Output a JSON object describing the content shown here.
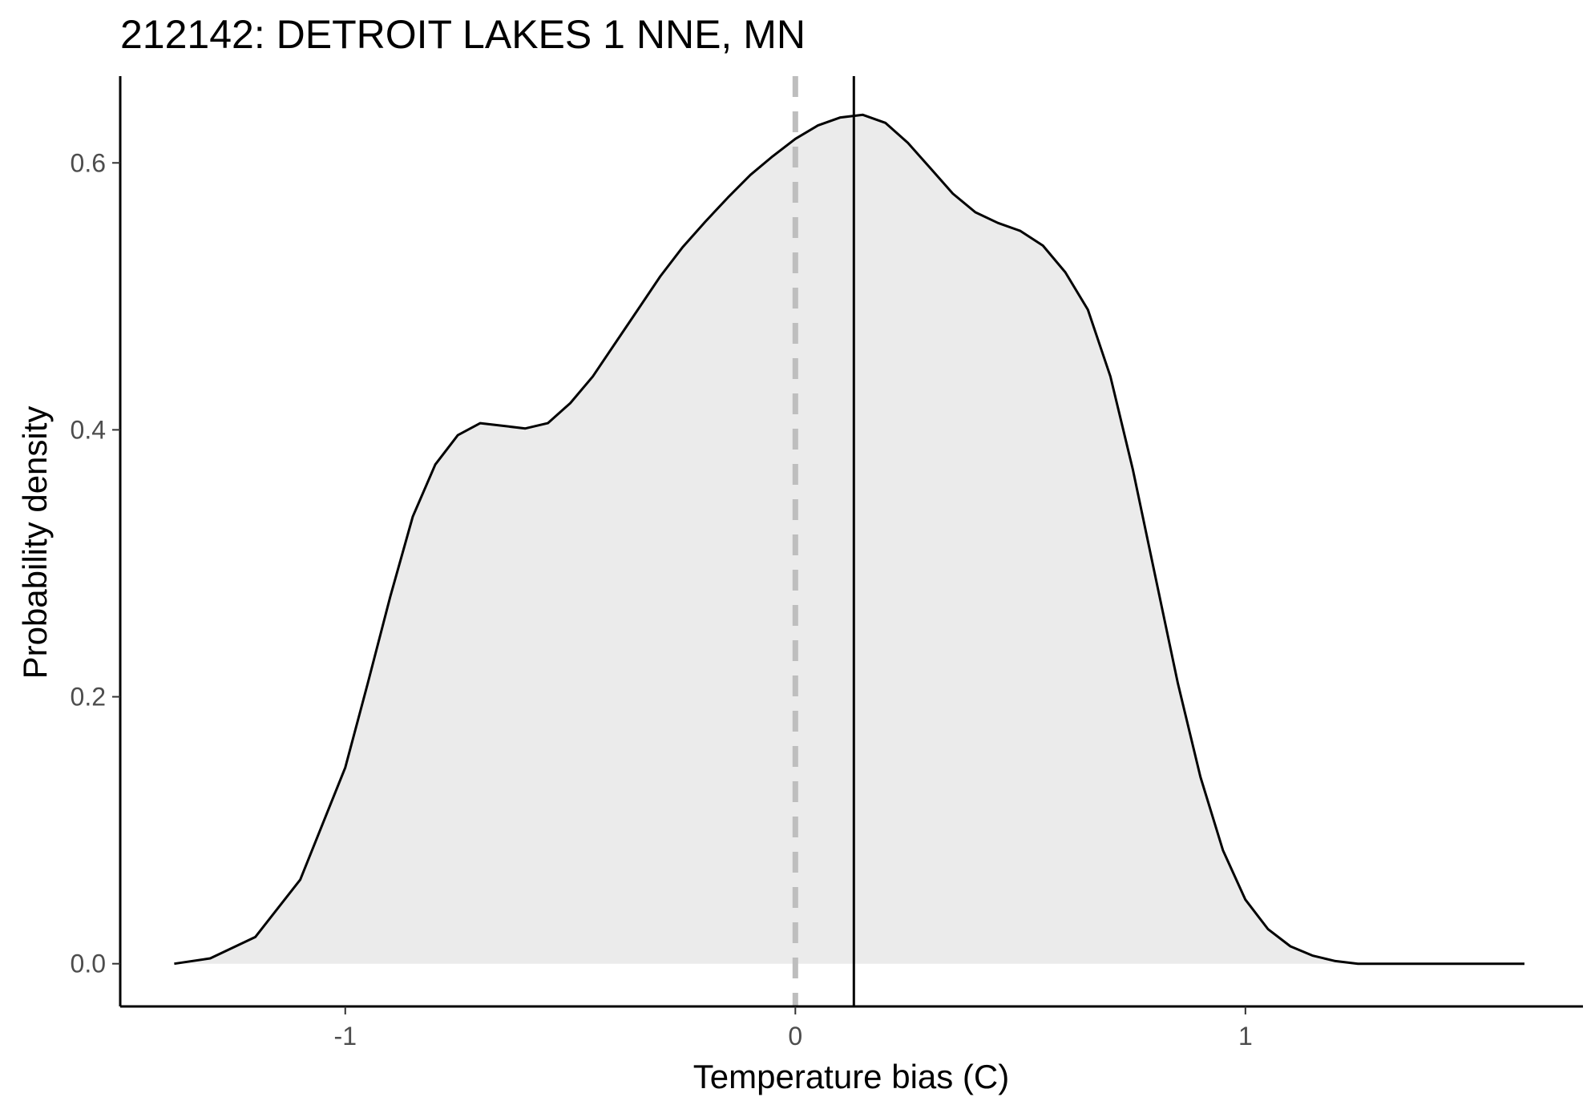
{
  "chart_data": {
    "type": "area",
    "title": "212142: DETROIT LAKES 1 NNE, MN",
    "xlabel": "Temperature bias (C)",
    "ylabel": "Probability density",
    "xlim": [
      -1.5,
      1.75
    ],
    "ylim": [
      -0.032,
      0.665
    ],
    "x_ticks": [
      -1,
      0,
      1
    ],
    "x_tick_labels": [
      "-1",
      "0",
      "1"
    ],
    "y_ticks": [
      0.0,
      0.2,
      0.4,
      0.6
    ],
    "y_tick_labels": [
      "0.0",
      "0.2",
      "0.4",
      "0.6"
    ],
    "grid": false,
    "fill_color": "#ebebeb",
    "line_color": "#000000",
    "series": [
      {
        "x": [
          -1.38,
          -1.3,
          -1.2,
          -1.1,
          -1.0,
          -0.95,
          -0.9,
          -0.85,
          -0.8,
          -0.75,
          -0.7,
          -0.65,
          -0.6,
          -0.55,
          -0.5,
          -0.45,
          -0.4,
          -0.35,
          -0.3,
          -0.25,
          -0.2,
          -0.15,
          -0.1,
          -0.05,
          0.0,
          0.05,
          0.1,
          0.15,
          0.2,
          0.25,
          0.3,
          0.35,
          0.4,
          0.45,
          0.5,
          0.55,
          0.6,
          0.65,
          0.7,
          0.75,
          0.8,
          0.85,
          0.9,
          0.95,
          1.0,
          1.05,
          1.1,
          1.15,
          1.2,
          1.25,
          1.3,
          1.35,
          1.4,
          1.45,
          1.5,
          1.55,
          1.6,
          1.62
        ],
        "values": [
          0.0,
          0.004,
          0.02,
          0.063,
          0.147,
          0.21,
          0.275,
          0.335,
          0.374,
          0.396,
          0.405,
          0.403,
          0.401,
          0.405,
          0.42,
          0.44,
          0.465,
          0.49,
          0.515,
          0.537,
          0.556,
          0.574,
          0.591,
          0.605,
          0.618,
          0.628,
          0.634,
          0.636,
          0.63,
          0.615,
          0.596,
          0.577,
          0.563,
          0.555,
          0.549,
          0.538,
          0.518,
          0.49,
          0.44,
          0.37,
          0.29,
          0.21,
          0.14,
          0.085,
          0.048,
          0.026,
          0.013,
          0.006,
          0.002,
          0.0,
          0.0,
          0.0,
          0.0,
          0.0,
          0.0,
          0.0,
          0.0,
          0.0
        ]
      }
    ],
    "reference_lines": [
      {
        "x": 0,
        "style": "dashed",
        "color": "#bebebe"
      },
      {
        "x": 0.13,
        "style": "solid",
        "color": "#000000"
      }
    ]
  }
}
